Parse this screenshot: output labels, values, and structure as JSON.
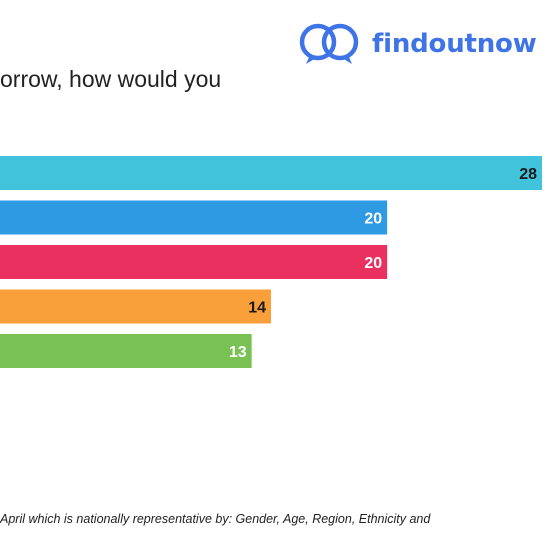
{
  "brand": {
    "name": "findoutnow",
    "logo_icon": "two-interlocking-speech-rings",
    "color": "#3f74e6"
  },
  "header": {
    "question_fragment": "orrow, how would you"
  },
  "chart_data": {
    "type": "bar",
    "orientation": "horizontal",
    "values": [
      28,
      20,
      20,
      14,
      13
    ],
    "colors": [
      "#41c3dc",
      "#2f9ae4",
      "#e9305f",
      "#f9a03a",
      "#78c152"
    ],
    "label_colors": [
      "#1a1a1a",
      "#ffffff",
      "#ffffff",
      "#1a1a1a",
      "#ffffff"
    ],
    "xlim": [
      0,
      28
    ],
    "grid": false,
    "legend": "none"
  },
  "footer": {
    "note": "April which is nationally representative by: Gender, Age, Region, Ethnicity and"
  }
}
